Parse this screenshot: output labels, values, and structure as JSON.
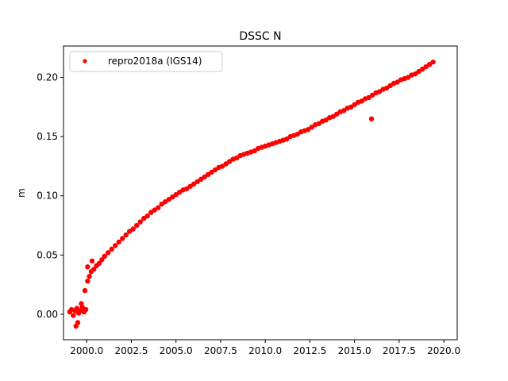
{
  "chart_data": {
    "type": "scatter",
    "title": "DSSC N",
    "xlabel": "",
    "ylabel": "m",
    "xlim": [
      1998.7,
      2020.75
    ],
    "ylim": [
      -0.0215,
      0.2265
    ],
    "xticks": [
      "2000.0",
      "2002.5",
      "2005.0",
      "2007.5",
      "2010.0",
      "2012.5",
      "2015.0",
      "2017.5",
      "2020.0"
    ],
    "yticks": [
      "0.00",
      "0.05",
      "0.10",
      "0.15",
      "0.20"
    ],
    "legend_position": "upper-left",
    "grid": false,
    "colors": {
      "series": "#ff0000",
      "axes": "#000000"
    },
    "series": [
      {
        "name": "repro2018a (IGS14)",
        "marker": "circle",
        "color": "#ff0000",
        "x": [
          1999.05,
          1999.15,
          1999.25,
          1999.35,
          1999.45,
          1999.55,
          1999.65,
          1999.75,
          1999.85,
          1999.95,
          2000.05,
          2000.15,
          2000.25,
          2000.4,
          2000.55,
          2000.7,
          2000.85,
          2001.0,
          2001.2,
          2001.4,
          2001.6,
          2001.8,
          2002.0,
          2002.2,
          2002.4,
          2002.6,
          2002.8,
          2003.0,
          2003.2,
          2003.4,
          2003.6,
          2003.8,
          2004.0,
          2004.2,
          2004.4,
          2004.6,
          2004.8,
          2005.0,
          2005.2,
          2005.4,
          2005.6,
          2005.8,
          2006.0,
          2006.2,
          2006.4,
          2006.6,
          2006.8,
          2007.0,
          2007.2,
          2007.4,
          2007.6,
          2007.8,
          2008.0,
          2008.2,
          2008.4,
          2008.6,
          2008.8,
          2009.0,
          2009.2,
          2009.4,
          2009.6,
          2009.8,
          2010.0,
          2010.2,
          2010.4,
          2010.6,
          2010.8,
          2011.0,
          2011.2,
          2011.4,
          2011.6,
          2011.8,
          2012.0,
          2012.2,
          2012.4,
          2012.6,
          2012.8,
          2013.0,
          2013.2,
          2013.4,
          2013.6,
          2013.8,
          2014.0,
          2014.2,
          2014.4,
          2014.6,
          2014.8,
          2015.0,
          2015.2,
          2015.4,
          2015.6,
          2015.8,
          2016.0,
          2016.2,
          2016.4,
          2016.6,
          2016.8,
          2017.0,
          2017.2,
          2017.4,
          2017.6,
          2017.8,
          2018.0,
          2018.2,
          2018.4,
          2018.6,
          2018.8,
          2019.0,
          2019.2,
          2019.4,
          1999.5,
          1999.4,
          1999.9,
          1999.7,
          2000.05,
          2000.3,
          2015.95
        ],
        "values": [
          0.002,
          0.004,
          -0.001,
          0.003,
          0.005,
          0.001,
          0.003,
          0.006,
          0.002,
          0.004,
          0.028,
          0.032,
          0.036,
          0.038,
          0.041,
          0.043,
          0.046,
          0.049,
          0.052,
          0.055,
          0.058,
          0.061,
          0.064,
          0.067,
          0.07,
          0.072,
          0.075,
          0.078,
          0.081,
          0.083,
          0.086,
          0.088,
          0.09,
          0.093,
          0.095,
          0.097,
          0.099,
          0.101,
          0.103,
          0.105,
          0.106,
          0.108,
          0.11,
          0.112,
          0.114,
          0.116,
          0.118,
          0.12,
          0.122,
          0.124,
          0.125,
          0.127,
          0.129,
          0.131,
          0.132,
          0.134,
          0.135,
          0.136,
          0.137,
          0.138,
          0.14,
          0.141,
          0.142,
          0.143,
          0.144,
          0.145,
          0.146,
          0.147,
          0.148,
          0.15,
          0.151,
          0.152,
          0.154,
          0.155,
          0.156,
          0.158,
          0.16,
          0.161,
          0.163,
          0.164,
          0.166,
          0.167,
          0.169,
          0.171,
          0.172,
          0.174,
          0.175,
          0.177,
          0.179,
          0.18,
          0.182,
          0.183,
          0.185,
          0.187,
          0.188,
          0.19,
          0.191,
          0.193,
          0.195,
          0.196,
          0.198,
          0.199,
          0.2,
          0.202,
          0.203,
          0.205,
          0.207,
          0.209,
          0.211,
          0.213,
          -0.007,
          -0.01,
          0.02,
          0.009,
          0.04,
          0.045,
          0.165
        ]
      }
    ]
  }
}
